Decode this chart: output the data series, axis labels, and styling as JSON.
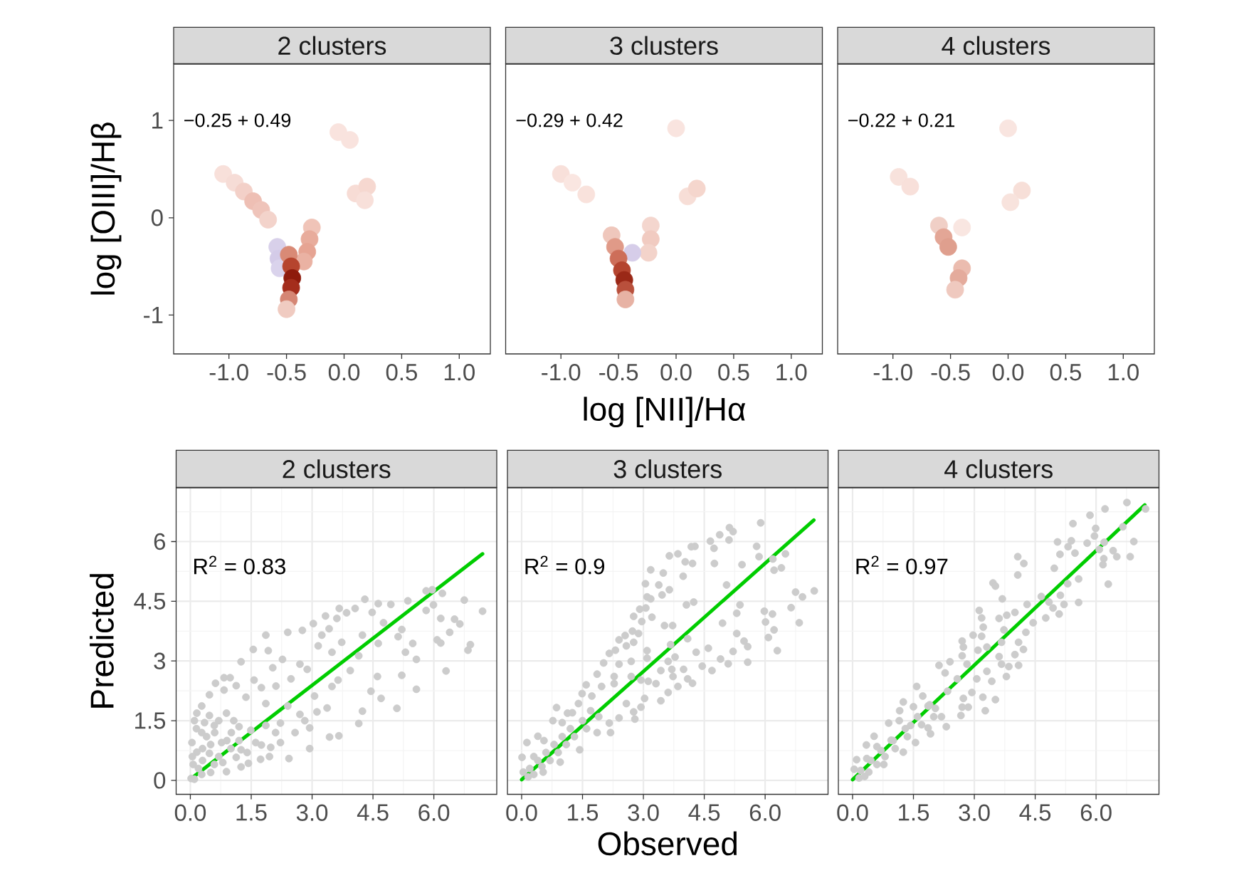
{
  "chart_data": [
    {
      "type": "scatter",
      "title": "2 clusters",
      "ylabel": "log [OIII]/Hβ",
      "marker": "circle",
      "x": [
        -1.05,
        -0.95,
        -0.87,
        -0.79,
        -0.72,
        -0.66,
        -0.05,
        0.05,
        0.1,
        0.2,
        0.18,
        -0.28,
        -0.3,
        -0.32,
        -0.35,
        -0.58,
        -0.57,
        -0.56,
        -0.48,
        -0.46,
        -0.45,
        -0.46,
        -0.48,
        -0.5
      ],
      "values": [
        0.45,
        0.36,
        0.27,
        0.17,
        0.08,
        -0.02,
        0.88,
        0.8,
        0.25,
        0.32,
        0.18,
        -0.1,
        -0.22,
        -0.35,
        -0.45,
        -0.3,
        -0.42,
        -0.52,
        -0.38,
        -0.5,
        -0.62,
        -0.72,
        -0.84,
        -0.94
      ],
      "colors": [
        "#f8e0da",
        "#f6dcd6",
        "#f3d0c8",
        "#eebfb4",
        "#efc4ba",
        "#f3d3cb",
        "#f9e3de",
        "#f9e3de",
        "#f7dcd5",
        "#f6d8d0",
        "#f8e0da",
        "#f0c4b8",
        "#e8ac9c",
        "#e6a493",
        "#eab2a3",
        "#d8d0ea",
        "#d4cbe8",
        "#dad3ec",
        "#d98a76",
        "#b6442e",
        "#8e1a0c",
        "#a42d1c",
        "#d58674",
        "#f0cbc1"
      ],
      "xlim": [
        -1.48,
        1.27
      ],
      "ylim": [
        -1.4,
        1.58
      ],
      "xticks": [
        {
          "value": -1,
          "label": "-1.0"
        },
        -0.5,
        {
          "value": 0,
          "label": "0.0"
        },
        0.5,
        {
          "value": 1,
          "label": "1.0"
        }
      ],
      "yticks": [
        -1,
        0,
        1
      ],
      "annotations": [
        "−0.25 + 0.49"
      ]
    },
    {
      "type": "scatter",
      "title": "3 clusters",
      "xlabel": "log [NII]/Hα",
      "marker": "circle",
      "x": [
        -1.0,
        -0.9,
        -0.78,
        0.0,
        0.1,
        0.18,
        -0.22,
        -0.22,
        -0.24,
        -0.38,
        -0.56,
        -0.53,
        -0.5,
        -0.47,
        -0.45,
        -0.44,
        -0.44
      ],
      "values": [
        0.45,
        0.36,
        0.24,
        0.92,
        0.22,
        0.3,
        -0.08,
        -0.22,
        -0.36,
        -0.36,
        -0.18,
        -0.3,
        -0.42,
        -0.54,
        -0.64,
        -0.74,
        -0.84
      ],
      "colors": [
        "#f8e0da",
        "#fae6e1",
        "#f9e2dc",
        "#f9e4df",
        "#f7ded7",
        "#f5d6cd",
        "#f4d6ce",
        "#f1cbc1",
        "#f3d3ca",
        "#d6cde9",
        "#efc7bc",
        "#e09a88",
        "#cd6e59",
        "#b4442f",
        "#9a2817",
        "#b9503c",
        "#e7b2a4"
      ],
      "xlim": [
        -1.48,
        1.27
      ],
      "ylim": [
        -1.4,
        1.58
      ],
      "xticks": [
        {
          "value": -1,
          "label": "-1.0"
        },
        -0.5,
        {
          "value": 0,
          "label": "0.0"
        },
        0.5,
        {
          "value": 1,
          "label": "1.0"
        }
      ],
      "tick_labels": "x",
      "annotations": [
        "−0.29 + 0.42"
      ]
    },
    {
      "type": "scatter",
      "title": "4 clusters",
      "marker": "circle",
      "x": [
        -0.95,
        -0.85,
        0.0,
        0.12,
        0.02,
        -0.4,
        -0.6,
        -0.56,
        -0.52,
        -0.4,
        -0.43,
        -0.46
      ],
      "values": [
        0.42,
        0.32,
        0.92,
        0.28,
        0.16,
        -0.1,
        -0.08,
        -0.2,
        -0.3,
        -0.52,
        -0.62,
        -0.74
      ],
      "colors": [
        "#f8e2dc",
        "#f8e0da",
        "#f9e5e0",
        "#f7dfd8",
        "#f8e3dd",
        "#f9e6e1",
        "#f0cfc6",
        "#e3a696",
        "#df9f8e",
        "#ebbcaf",
        "#e4ab9c",
        "#efc9bf"
      ],
      "xlim": [
        -1.48,
        1.27
      ],
      "ylim": [
        -1.4,
        1.58
      ],
      "xticks": [
        {
          "value": -1,
          "label": "-1.0"
        },
        -0.5,
        {
          "value": 0,
          "label": "0.0"
        },
        0.5,
        {
          "value": 1,
          "label": "1.0"
        }
      ],
      "tick_labels": "x",
      "annotations": [
        "−0.22 + 0.21"
      ]
    },
    {
      "type": "scatter",
      "title": "2 clusters",
      "ylabel": "Predicted",
      "grid": true,
      "series": [
        {
          "type": "scatter",
          "color": "#cccccc",
          "marker": "circle",
          "x": [
            7.2,
            6.75,
            6.21,
            5.96,
            5.81,
            5.99,
            5.81,
            6.17,
            6.51,
            6.64,
            6.39,
            6.08,
            6.17,
            6.9,
            6.84,
            6.3,
            5.57,
            5.48,
            5.3,
            5.12,
            5.21,
            5.21,
            5.57,
            5.09,
            5.36,
            4.94,
            4.63,
            4.3,
            4.48,
            4.76,
            4.63,
            4.24,
            4.15,
            4.61,
            4.7,
            4.45,
            4.24,
            4.15,
            3.67,
            4.06,
            3.85,
            3.33,
            3.61,
            3.03,
            2.76,
            2.4,
            1.86,
            3.24,
            3.42,
            3.15,
            3.49,
            3.73,
            3.94,
            3.64,
            3.49,
            3.37,
            3.12,
            2.94,
            3.43,
            3.66,
            2.94,
            2.43,
            1.95,
            1.73,
            1.43,
            1.55,
            1.92,
            1.25,
            2.03,
            2.27,
            2.7,
            2.88,
            2.48,
            2.11,
            1.75,
            1.57,
            1.13,
            0.83,
            0.62,
            0.98,
            0.47,
            0.83,
            1.37,
            1.86,
            2.4,
            2.7,
            3.06,
            2.82,
            2.22,
            2.58,
            2.22,
            1.75,
            1.25,
            0.28,
            0.1,
            0.04,
            0.07,
            0.16,
            0.47,
            0.89,
            0.59,
            1.07,
            1.49,
            1.86,
            2.1,
            0.28,
            0.77,
            1.13,
            0.59,
            0.28,
            0.89,
            0.47,
            0.16,
            0.02,
            0.1,
            1.25,
            1.61,
            1.98,
            1.01,
            0.3,
            0.5,
            0.7,
            0.4,
            0.2,
            0.6,
            0.9,
            1.0,
            0.3,
            0.15,
            0.5,
            0.8,
            1.2,
            1.4,
            0.05,
            0.35,
            0.7,
            1.2
          ],
          "values": [
            4.25,
            4.53,
            4.7,
            4.79,
            4.76,
            4.41,
            4.27,
            4.07,
            4.05,
            3.93,
            3.72,
            3.53,
            3.45,
            3.41,
            3.27,
            2.75,
            3.04,
            3.44,
            3.22,
            3.61,
            3.79,
            2.64,
            2.29,
            1.81,
            4.51,
            4.42,
            4.44,
            4.55,
            4.22,
            3.96,
            3.44,
            3.65,
            3.13,
            2.61,
            2.06,
            2.24,
            1.74,
            1.43,
            4.32,
            4.32,
            4.21,
            4.13,
            4.07,
            3.94,
            3.77,
            3.72,
            3.65,
            3.65,
            3.81,
            3.38,
            3.22,
            3.47,
            2.76,
            2.52,
            2.36,
            1.82,
            1.72,
            1.32,
            1.09,
            1.12,
            0.8,
            0.55,
            0.6,
            0.53,
            0.43,
            3.29,
            3.26,
            2.98,
            2.83,
            3.04,
            2.92,
            2.79,
            2.55,
            2.37,
            2.33,
            2.52,
            2.38,
            2.58,
            2.44,
            2.58,
            2.15,
            2.27,
            2.09,
            1.93,
            1.87,
            1.66,
            2.12,
            1.5,
            1.44,
            1.2,
            0.95,
            0.89,
            0.77,
            1.87,
            1.5,
            0.95,
            0.4,
            1.69,
            1.63,
            1.69,
            1.38,
            1.5,
            1.26,
            1.38,
            1.2,
            1.2,
            0.95,
            0.58,
            0.4,
            0.15,
            0.22,
            0.68,
            0.71,
            0.05,
            0.03,
            0.34,
            0.95,
            0.83,
            1.2,
            0.5,
            0.9,
            0.6,
            1.1,
            0.3,
            1.2,
            1.0,
            0.8,
            0.8,
            1.3,
            0.2,
            0.45,
            1.0,
            0.7,
            0.6,
            1.45,
            1.5,
            1.35
          ]
        },
        {
          "type": "line",
          "color": "#00cd00",
          "x": [
            0,
            7.2
          ],
          "values": [
            0.03,
            5.69
          ]
        }
      ],
      "xlim": [
        -0.35,
        7.55
      ],
      "ylim": [
        -0.35,
        7.35
      ],
      "xticks": [
        {
          "value": 0,
          "label": "0.0"
        },
        1.5,
        {
          "value": 3,
          "label": "3.0"
        },
        4.5,
        {
          "value": 6,
          "label": "6.0"
        }
      ],
      "yticks": [
        0,
        1.5,
        3,
        4.5,
        6
      ],
      "annotations": [
        "R$^{2}$ = 0.83"
      ]
    },
    {
      "type": "scatter",
      "title": "3 clusters",
      "xlabel": "Observed",
      "grid": true,
      "series": [
        {
          "type": "scatter",
          "color": "#cccccc",
          "marker": "circle",
          "x": [
            5.89,
            5.12,
            5.21,
            5.11,
            4.88,
            4.65,
            4.74,
            4.75,
            4.27,
            4.18,
            4.21,
            4.03,
            3.85,
            3.64,
            3.98,
            3.49,
            3.18,
            3.05,
            3.38,
            3.64,
            3.46,
            3.09,
            3.18,
            3.06,
            2.91,
            2.76,
            3.21,
            2.96,
            3.52,
            3.72,
            2.73,
            2.88,
            2.55,
            2.4,
            2.58,
            2.31,
            2.76,
            2.7,
            2.16,
            2.02,
            2.4,
            1.86,
            2.28,
            1.59,
            1.49,
            1.73,
            1.97,
            2.28,
            2.7,
            2.94,
            0.86,
            1.4,
            1.13,
            0.77,
            0.4,
            0.13,
            0.01,
            0.04,
            0.16,
            0.53,
            0.95,
            1.43,
            1.86,
            2.19,
            2.16,
            2.4,
            2.79,
            2.76,
            2.58,
            2.94,
            3.03,
            3.43,
            3.61,
            3.85,
            3.31,
            3.12,
            3.43,
            3.7,
            3.73,
            4.09,
            4.21,
            3.99,
            3.78,
            3.61,
            3.09,
            3.09,
            3.67,
            4.3,
            4.45,
            4.69,
            4.6,
            4.9,
            5.09,
            5.21,
            5.57,
            5.57,
            5.3,
            5.48,
            4.95,
            5.3,
            5.38,
            4.06,
            4.24,
            4.09,
            5.05,
            5.43,
            5.79,
            5.85,
            6.19,
            6.22,
            6.4,
            6.5,
            6.75,
            6.92,
            7.21,
            6.64,
            5.98,
            6.18,
            6.01,
            6.84,
            6.22,
            6.08,
            6.3,
            0.2,
            0.3,
            0.4,
            0.5,
            0.6,
            0.7,
            0.8,
            0.9,
            1.0,
            1.1,
            1.2,
            1.3,
            1.5,
            1.6,
            1.7,
            1.9,
            0.3,
            0.55,
            1.0,
            1.25
          ],
          "values": [
            6.47,
            6.35,
            6.25,
            6.04,
            6.17,
            6.01,
            5.83,
            5.45,
            5.88,
            5.87,
            5.45,
            5.49,
            5.69,
            5.64,
            5.13,
            5.21,
            5.29,
            4.94,
            4.91,
            4.79,
            4.66,
            4.61,
            4.56,
            4.33,
            4.3,
            4.12,
            4.1,
            3.99,
            3.89,
            3.89,
            3.75,
            3.69,
            3.64,
            3.53,
            3.38,
            3.27,
            3.47,
            2.99,
            3.19,
            2.95,
            2.92,
            2.67,
            2.61,
            2.4,
            2.18,
            2.12,
            2.36,
            2.43,
            2.61,
            2.52,
            1.83,
            1.93,
            1.69,
            1.5,
            1.11,
            0.95,
            0.58,
            0.21,
            0.09,
            0.21,
            0.46,
            0.77,
            1.2,
            1.2,
            1.44,
            1.57,
            1.54,
            1.72,
            1.93,
            1.84,
            2.06,
            2.0,
            2.21,
            2.36,
            2.43,
            2.49,
            2.76,
            2.79,
            2.61,
            2.55,
            2.44,
            2.79,
            3.1,
            2.99,
            3.26,
            3.07,
            3.41,
            3.22,
            2.87,
            2.76,
            3.32,
            3.05,
            2.93,
            3.24,
            2.97,
            3.36,
            3.69,
            3.5,
            3.95,
            4.2,
            4.41,
            4.41,
            4.48,
            3.56,
            4.91,
            5.42,
            5.88,
            5.62,
            5.56,
            5.28,
            5.34,
            5.69,
            4.73,
            4.61,
            4.76,
            4.34,
            4.25,
            4.18,
            3.98,
            3.96,
            3.78,
            3.59,
            3.26,
            0.3,
            0.15,
            0.5,
            0.35,
            0.7,
            0.5,
            0.9,
            0.7,
            1.1,
            0.9,
            1.3,
            1.1,
            1.5,
            1.3,
            1.75,
            1.6,
            0.6,
            1.0,
            1.45,
            1.7
          ]
        },
        {
          "type": "line",
          "color": "#00cd00",
          "x": [
            0,
            7.2
          ],
          "values": [
            0.02,
            6.54
          ]
        }
      ],
      "xlim": [
        -0.35,
        7.55
      ],
      "ylim": [
        -0.35,
        7.35
      ],
      "xticks": [
        {
          "value": 0,
          "label": "0.0"
        },
        1.5,
        {
          "value": 3,
          "label": "3.0"
        },
        4.5,
        {
          "value": 6,
          "label": "6.0"
        }
      ],
      "yticks": [
        0,
        1.5,
        3,
        4.5,
        6
      ],
      "tick_labels": "x",
      "annotations": [
        "R$^{2}$ = 0.9"
      ]
    },
    {
      "type": "scatter",
      "title": "4 clusters",
      "grid": true,
      "series": [
        {
          "type": "scatter",
          "color": "#cccccc",
          "marker": "circle",
          "x": [
            6.76,
            6.22,
            7.22,
            5.85,
            5.43,
            5.99,
            5.96,
            6.66,
            5.05,
            5.39,
            5.78,
            6.2,
            6.93,
            5.31,
            5.11,
            5.48,
            6.08,
            6.42,
            6.51,
            6.84,
            6.19,
            6.17,
            4.07,
            4.22,
            4.07,
            4.97,
            6.3,
            5.57,
            5.3,
            3.46,
            3.52,
            3.69,
            5.12,
            5.57,
            5.21,
            4.65,
            4.84,
            4.94,
            5.09,
            4.76,
            4.3,
            4.45,
            4.0,
            3.8,
            3.61,
            3.12,
            3.18,
            3.22,
            3.73,
            4.27,
            4.09,
            4.0,
            4.21,
            2.97,
            3.18,
            2.7,
            2.73,
            3.09,
            3.31,
            3.67,
            3.61,
            3.67,
            3.85,
            4.09,
            3.79,
            2.7,
            2.82,
            3.31,
            3.43,
            3.06,
            2.94,
            3.21,
            3.52,
            2.73,
            2.7,
            2.85,
            3.27,
            2.67,
            2.13,
            2.4,
            2.28,
            2.58,
            2.34,
            2.19,
            2.31,
            1.92,
            1.58,
            1.73,
            1.25,
            1.16,
            0.89,
            0.53,
            0.34,
            0.1,
            0.04,
            0.16,
            0.4,
            0.77,
            1.25,
            1.55,
            1.86,
            2.04,
            1.86,
            1.43,
            0.95,
            0.2,
            0.3,
            0.45,
            0.6,
            0.7,
            0.8,
            1.0,
            1.05,
            1.3,
            1.35,
            1.6,
            1.7,
            1.9,
            2.0,
            0.35,
            0.6,
            1.15,
            1.5
          ],
          "values": [
            6.98,
            6.82,
            6.82,
            6.66,
            6.45,
            6.33,
            6.14,
            6.37,
            5.99,
            6.02,
            5.96,
            5.98,
            6.0,
            5.87,
            5.68,
            5.71,
            5.8,
            5.77,
            5.62,
            5.62,
            5.57,
            5.42,
            5.62,
            5.45,
            5.16,
            5.33,
            4.93,
            5.06,
            4.94,
            4.96,
            4.88,
            4.56,
            4.65,
            4.47,
            4.42,
            4.62,
            4.48,
            4.33,
            4.18,
            4.08,
            4.42,
            3.96,
            4.22,
            4.15,
            4.07,
            4.27,
            4.08,
            3.85,
            3.78,
            3.72,
            3.47,
            3.16,
            3.29,
            3.65,
            3.62,
            3.5,
            3.35,
            3.27,
            3.35,
            3.47,
            3.11,
            2.92,
            2.86,
            2.89,
            2.61,
            3.13,
            2.92,
            2.74,
            2.49,
            2.55,
            2.21,
            2.09,
            2.03,
            2.06,
            1.84,
            1.84,
            1.75,
            1.63,
            2.89,
            2.98,
            2.7,
            2.55,
            2.24,
            1.6,
            1.35,
            1.17,
            2.36,
            2.12,
            1.97,
            1.75,
            1.44,
            1.11,
            0.89,
            0.52,
            0.28,
            0.06,
            0.21,
            0.4,
            0.71,
            0.95,
            1.32,
            1.81,
            1.87,
            1.38,
            1.01,
            0.25,
            0.1,
            0.5,
            0.4,
            0.75,
            0.6,
            1.0,
            0.8,
            1.3,
            1.1,
            1.6,
            1.4,
            1.9,
            1.6,
            0.55,
            0.85,
            1.5,
            1.85
          ]
        },
        {
          "type": "line",
          "color": "#00cd00",
          "x": [
            0,
            7.2
          ],
          "values": [
            0.02,
            6.92
          ]
        }
      ],
      "xlim": [
        -0.35,
        7.55
      ],
      "ylim": [
        -0.35,
        7.35
      ],
      "xticks": [
        {
          "value": 0,
          "label": "0.0"
        },
        1.5,
        {
          "value": 3,
          "label": "3.0"
        },
        4.5,
        {
          "value": 6,
          "label": "6.0"
        }
      ],
      "yticks": [
        0,
        1.5,
        3,
        4.5,
        6
      ],
      "tick_labels": "x",
      "annotations": [
        "R$^{2}$ = 0.97"
      ]
    }
  ]
}
